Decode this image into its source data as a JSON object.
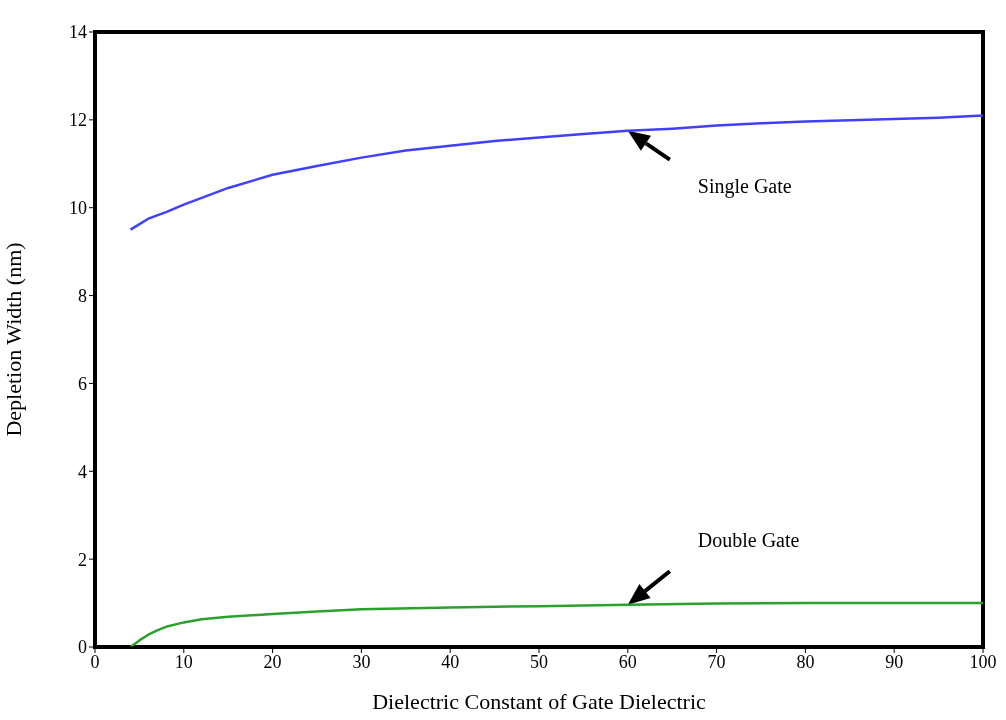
{
  "chart_data": {
    "type": "line",
    "xlabel": "Dielectric Constant of Gate Dielectric",
    "ylabel": "Depletion Width (nm)",
    "xlim": [
      0,
      100
    ],
    "xticks": [
      0,
      10,
      20,
      30,
      40,
      50,
      60,
      70,
      80,
      90,
      100
    ],
    "ylim": [
      0,
      14
    ],
    "yticks": [
      0,
      2,
      4,
      6,
      8,
      10,
      12,
      14
    ],
    "grid": false,
    "legend": false,
    "marker": "none",
    "line_style": "solid",
    "series": [
      {
        "name": "Single Gate",
        "color": "#4040ff",
        "x": [
          4,
          6,
          8,
          10,
          15,
          20,
          25,
          30,
          35,
          40,
          45,
          50,
          55,
          60,
          65,
          70,
          75,
          80,
          85,
          90,
          95,
          100
        ],
        "values": [
          9.5,
          9.75,
          9.9,
          10.07,
          10.45,
          10.75,
          10.95,
          11.14,
          11.3,
          11.41,
          11.52,
          11.6,
          11.68,
          11.75,
          11.8,
          11.87,
          11.92,
          11.96,
          11.99,
          12.02,
          12.05,
          12.1
        ]
      },
      {
        "name": "Double Gate",
        "color": "#2ca02c",
        "x": [
          4,
          5,
          6,
          7,
          8,
          10,
          12,
          15,
          20,
          25,
          30,
          40,
          50,
          60,
          70,
          80,
          90,
          100
        ],
        "values": [
          0,
          0.15,
          0.28,
          0.38,
          0.46,
          0.56,
          0.63,
          0.69,
          0.75,
          0.81,
          0.86,
          0.9,
          0.93,
          0.96,
          0.99,
          1.0,
          1.0,
          1.0
        ]
      }
    ]
  }
}
